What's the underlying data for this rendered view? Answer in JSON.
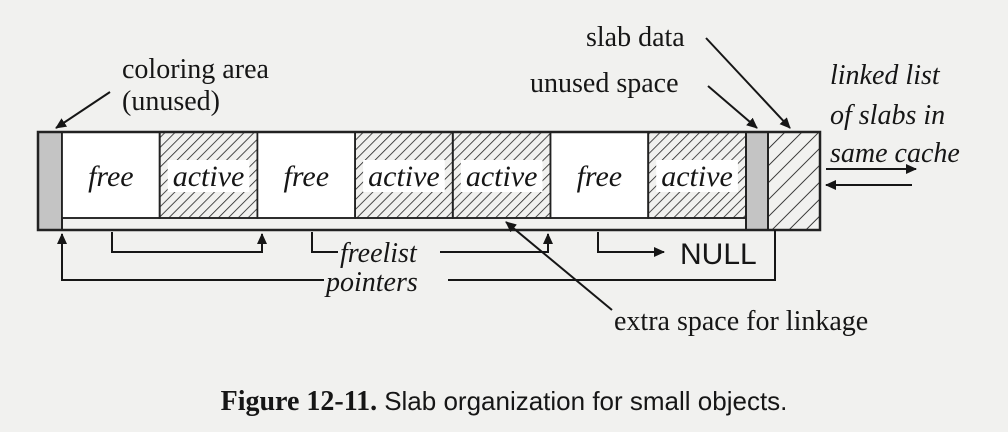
{
  "labels": {
    "coloring_area_line1": "coloring area",
    "coloring_area_line2": "(unused)",
    "slab_data": "slab data",
    "unused_space": "unused space",
    "linked_list_line1": "linked list",
    "linked_list_line2": "of slabs in",
    "linked_list_line3": "same cache",
    "freelist": "freelist",
    "pointers": "pointers",
    "null": "NULL",
    "extra_space": "extra space for linkage"
  },
  "cells": [
    {
      "text": "free",
      "state": "free"
    },
    {
      "text": "active",
      "state": "active"
    },
    {
      "text": "free",
      "state": "free"
    },
    {
      "text": "active",
      "state": "active"
    },
    {
      "text": "active",
      "state": "active"
    },
    {
      "text": "free",
      "state": "free"
    },
    {
      "text": "active",
      "state": "active"
    }
  ],
  "caption": {
    "number": "Figure 12-11.",
    "text": "Slab organization for small objects."
  }
}
